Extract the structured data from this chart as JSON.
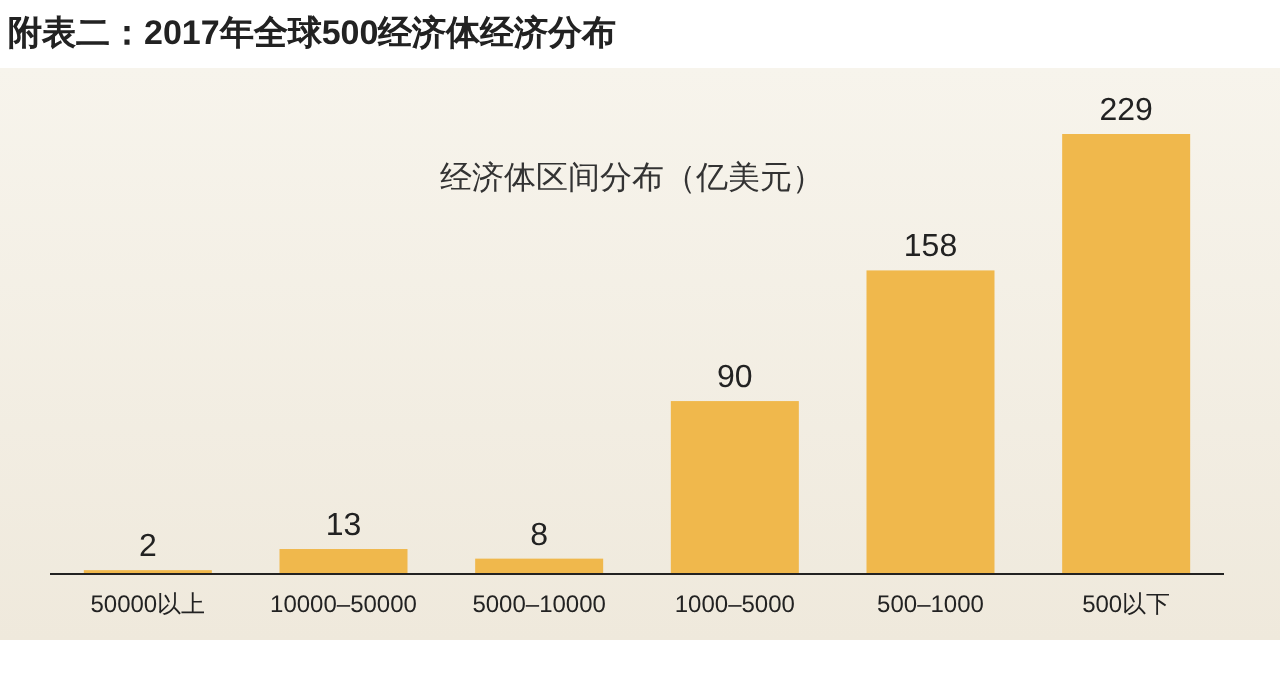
{
  "chart_data": {
    "type": "bar",
    "title": "附表二：2017年全球500经济体经济分布",
    "subtitle": "经济体区间分布（亿美元）",
    "categories": [
      "50000以上",
      "10000–50000",
      "5000–10000",
      "1000–5000",
      "500–1000",
      "500以下"
    ],
    "values": [
      2,
      13,
      8,
      90,
      158,
      229
    ],
    "color": "#f0b84c",
    "data_labels": true
  }
}
